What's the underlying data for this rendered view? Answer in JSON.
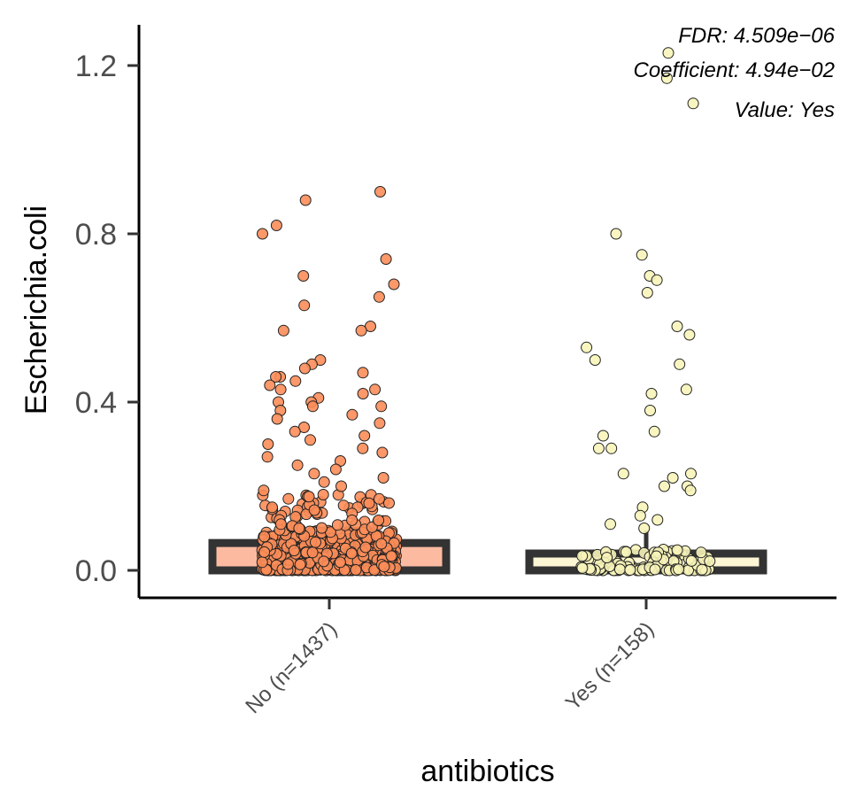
{
  "chart_data": {
    "type": "boxplot-jitter",
    "xlabel": "antibiotics",
    "ylabel": "Escherichia.coli",
    "ylim": [
      -0.06,
      1.3
    ],
    "yticks": [
      0.0,
      0.4,
      0.8,
      1.2
    ],
    "ytick_labels": [
      "0.0",
      "0.4",
      "0.8",
      "1.2"
    ],
    "annotations": [
      "FDR: 4.509e−06",
      "Coefficient: 4.94e−02",
      "Value: Yes"
    ],
    "groups": [
      {
        "label": "No (n=1437)",
        "fill": "#fcbba1",
        "point_color": "#fc8d59",
        "box": {
          "min": 0.0,
          "q1": 0.0,
          "median": 0.03,
          "q3": 0.065,
          "max": 0.065
        },
        "outliers": [
          0.9,
          0.88,
          0.82,
          0.8,
          0.74,
          0.7,
          0.68,
          0.65,
          0.63,
          0.58,
          0.57,
          0.57,
          0.5,
          0.49,
          0.48,
          0.47,
          0.46,
          0.46,
          0.45,
          0.44,
          0.43,
          0.43,
          0.42,
          0.41,
          0.4,
          0.4,
          0.39,
          0.39,
          0.38,
          0.37,
          0.36,
          0.35,
          0.34,
          0.33,
          0.32,
          0.31,
          0.3,
          0.29,
          0.28,
          0.27,
          0.26,
          0.25,
          0.24,
          0.23,
          0.22,
          0.21,
          0.2,
          0.19,
          0.18,
          0.17,
          0.16,
          0.15,
          0.14,
          0.13,
          0.12,
          0.11,
          0.1
        ]
      },
      {
        "label": "Yes (n=158)",
        "fill": "#fdf6d5",
        "point_color": "#f7f4b9",
        "box": {
          "min": 0.0,
          "q1": 0.0,
          "median": 0.02,
          "q3": 0.04,
          "max": 0.095
        },
        "outliers": [
          1.23,
          1.17,
          1.11,
          0.8,
          0.75,
          0.7,
          0.69,
          0.66,
          0.58,
          0.56,
          0.53,
          0.5,
          0.49,
          0.43,
          0.42,
          0.38,
          0.33,
          0.32,
          0.29,
          0.29,
          0.23,
          0.23,
          0.22,
          0.2,
          0.2,
          0.19,
          0.15,
          0.13,
          0.12,
          0.11,
          0.1
        ]
      }
    ]
  }
}
